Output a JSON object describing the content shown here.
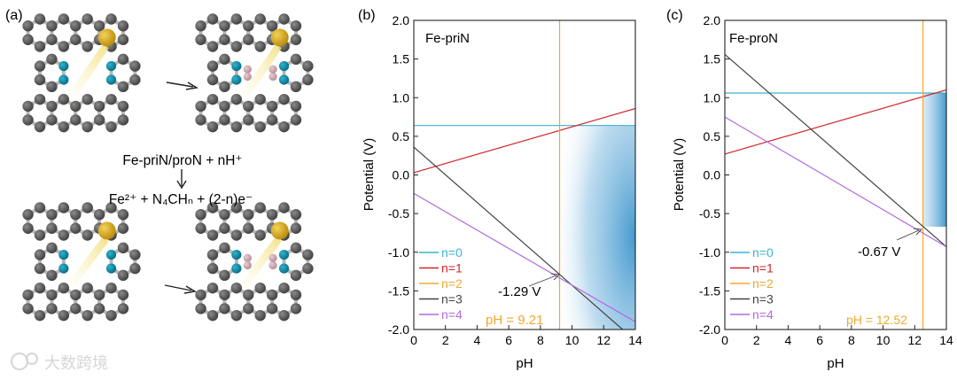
{
  "panel_a": {
    "label": "(a)",
    "reaction_line1": "Fe-priN/proN + nH⁺",
    "reaction_line2": "Fe²⁺ + N₄CHₙ + (2-n)e⁻"
  },
  "watermark": "大数跨境",
  "colors": {
    "cyan": "#3bb3cf",
    "red": "#d0262b",
    "orange": "#f0a830",
    "dark": "#444444",
    "purple": "#b36ae0",
    "shade": "#3a94cc",
    "carbon": "#5a5a5a",
    "nitrogen": "#0d8aa6",
    "iron": "#d4a012",
    "hydrogen": "#c9a3ac",
    "bond": "#b8b8b8"
  },
  "chart_data": [
    {
      "type": "line",
      "panel": "(b)",
      "title": "Fe-priN",
      "xlabel": "pH",
      "ylabel": "Potential (V)",
      "xlim": [
        0,
        14
      ],
      "ylim": [
        -2.0,
        2.0
      ],
      "xticks": [
        "0",
        "2",
        "4",
        "6",
        "8",
        "10",
        "12",
        "14"
      ],
      "yticks": [
        "2.0",
        "1.5",
        "1.0",
        "0.5",
        "0.0",
        "-0.5",
        "-1.0",
        "-1.5",
        "-2.0"
      ],
      "series": [
        {
          "name": "n=0",
          "color": "#3bb3cf",
          "points": [
            [
              0,
              0.64
            ],
            [
              14,
              0.64
            ]
          ]
        },
        {
          "name": "n=1",
          "color": "#d0262b",
          "points": [
            [
              0,
              0.03
            ],
            [
              14,
              0.86
            ]
          ]
        },
        {
          "name": "n=2",
          "color": "#f0a830",
          "points": [
            [
              9.21,
              2.0
            ],
            [
              9.21,
              -2.0
            ]
          ]
        },
        {
          "name": "n=3",
          "color": "#444444",
          "points": [
            [
              0,
              0.36
            ],
            [
              13.2,
              -2.0
            ]
          ]
        },
        {
          "name": "n=4",
          "color": "#b36ae0",
          "points": [
            [
              0,
              -0.24
            ],
            [
              14,
              -1.9
            ]
          ]
        }
      ],
      "shade_region": {
        "x": [
          9.21,
          14
        ],
        "y": [
          -2.0,
          0.64
        ]
      },
      "annotations": [
        {
          "text": "-1.29 V",
          "x": 9.21,
          "y": -1.29
        },
        {
          "text": "pH = 9.21"
        }
      ]
    },
    {
      "type": "line",
      "panel": "(c)",
      "title": "Fe-proN",
      "xlabel": "pH",
      "ylabel": "Potential (V)",
      "xlim": [
        0,
        14
      ],
      "ylim": [
        -2.0,
        2.0
      ],
      "xticks": [
        "0",
        "2",
        "4",
        "6",
        "8",
        "10",
        "12",
        "14"
      ],
      "yticks": [
        "2.0",
        "1.5",
        "1.0",
        "0.5",
        "0.0",
        "-0.5",
        "-1.0",
        "-1.5",
        "-2.0"
      ],
      "series": [
        {
          "name": "n=0",
          "color": "#3bb3cf",
          "points": [
            [
              0,
              1.06
            ],
            [
              14,
              1.06
            ]
          ]
        },
        {
          "name": "n=1",
          "color": "#d0262b",
          "points": [
            [
              0,
              0.27
            ],
            [
              14,
              1.1
            ]
          ]
        },
        {
          "name": "n=2",
          "color": "#f0a830",
          "points": [
            [
              12.52,
              2.0
            ],
            [
              12.52,
              -2.0
            ]
          ]
        },
        {
          "name": "n=3",
          "color": "#444444",
          "points": [
            [
              0,
              1.56
            ],
            [
              14,
              -0.93
            ]
          ]
        },
        {
          "name": "n=4",
          "color": "#b36ae0",
          "points": [
            [
              0,
              0.75
            ],
            [
              14,
              -0.93
            ]
          ]
        }
      ],
      "shade_region": {
        "x": [
          12.52,
          14
        ],
        "y": [
          -0.67,
          1.06
        ]
      },
      "annotations": [
        {
          "text": "-0.67 V",
          "x": 12.52,
          "y": -0.67
        },
        {
          "text": "pH = 12.52"
        }
      ]
    }
  ]
}
